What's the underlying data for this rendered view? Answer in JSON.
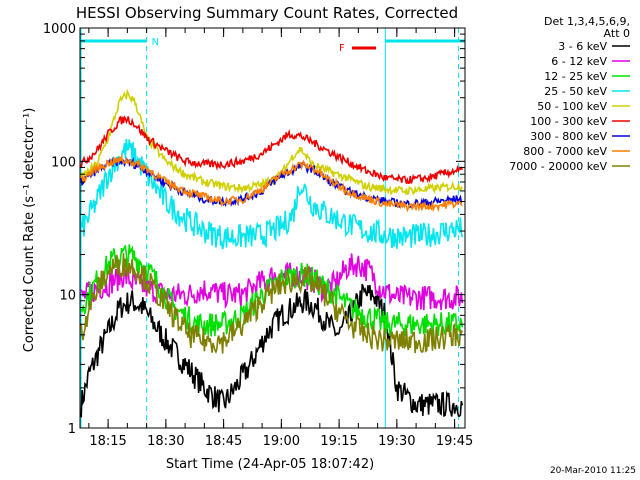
{
  "chart_data": {
    "type": "line",
    "title": "HESSI Observing Summary Count Rates, Corrected",
    "xlabel": "Start Time (24-Apr-05 18:07:42)",
    "ylabel": "Corrected Count Rate (s⁻¹ detector⁻¹)",
    "yscale": "log",
    "ylim": [
      1,
      1000
    ],
    "xlim_minutes_after_18_07_42": [
      0,
      100
    ],
    "x_ticks": [
      "18:15",
      "18:30",
      "18:45",
      "19:00",
      "19:15",
      "19:30",
      "19:45"
    ],
    "y_ticks": [
      "1",
      "10",
      "100",
      "1000"
    ],
    "legend_header": [
      "Det 1,3,4,5,6,9,",
      "Att 0"
    ],
    "legend_placement": "right",
    "flags": {
      "night_label": "N",
      "flare_label": "F",
      "night_color": "#00e5ee",
      "flare_color": "#ee0000"
    },
    "footer_date": "20-Mar-2010 11:25",
    "series": [
      {
        "name": "3 - 6 keV",
        "color": "#000000",
        "x": [
          "18:08",
          "18:10",
          "18:13",
          "18:16",
          "18:18",
          "18:21",
          "18:24",
          "18:27",
          "18:30",
          "18:35",
          "18:40",
          "18:45",
          "18:48",
          "18:52",
          "18:56",
          "19:00",
          "19:03",
          "19:06",
          "19:09",
          "19:12",
          "19:15",
          "19:18",
          "19:21",
          "19:24",
          "19:27",
          "19:30",
          "19:35",
          "19:40",
          "19:45"
        ],
        "y": [
          1.5,
          2.5,
          4,
          6,
          8,
          9,
          8,
          6,
          4.5,
          3,
          2,
          1.5,
          2,
          3,
          5,
          7,
          8,
          9,
          8,
          6,
          5,
          7,
          10,
          10,
          7,
          2,
          1.5,
          1.5,
          1.5
        ]
      },
      {
        "name": "6 - 12 keV",
        "color": "#e000e0",
        "x": [
          "18:08",
          "18:12",
          "18:15",
          "18:19",
          "18:22",
          "18:26",
          "18:30",
          "18:36",
          "18:40",
          "18:45",
          "18:50",
          "18:54",
          "18:58",
          "19:02",
          "19:05",
          "19:08",
          "19:11",
          "19:14",
          "19:17",
          "19:20",
          "19:23",
          "19:26",
          "19:30",
          "19:35",
          "19:40",
          "19:45"
        ],
        "y": [
          9.5,
          11,
          12,
          14,
          12,
          11,
          10,
          10,
          11,
          10,
          10,
          12,
          14,
          14,
          14,
          13,
          11,
          12,
          16,
          17,
          15,
          11,
          9.5,
          9.5,
          9.5,
          9.5
        ]
      },
      {
        "name": "12 - 25 keV",
        "color": "#00e000",
        "x": [
          "18:08",
          "18:10",
          "18:13",
          "18:16",
          "18:19",
          "18:22",
          "18:25",
          "18:28",
          "18:32",
          "18:38",
          "18:45",
          "18:50",
          "18:55",
          "19:00",
          "19:04",
          "19:07",
          "19:10",
          "19:14",
          "19:18",
          "19:22",
          "19:27",
          "19:32",
          "19:38",
          "19:45"
        ],
        "y": [
          8,
          10,
          14,
          18,
          20,
          19,
          16,
          12,
          8,
          6,
          6,
          7,
          10,
          13,
          14,
          14,
          12,
          10,
          8,
          7,
          6,
          6,
          6,
          6
        ]
      },
      {
        "name": "25 - 50 keV",
        "color": "#00e5ee",
        "x": [
          "18:08",
          "18:12",
          "18:15",
          "18:18",
          "18:20",
          "18:22",
          "18:25",
          "18:30",
          "18:35",
          "18:40",
          "18:45",
          "18:50",
          "18:55",
          "19:00",
          "19:03",
          "19:05",
          "19:08",
          "19:12",
          "19:17",
          "19:22",
          "19:27",
          "19:32",
          "19:38",
          "19:45"
        ],
        "y": [
          30,
          50,
          80,
          110,
          125,
          110,
          80,
          50,
          37,
          30,
          27,
          27,
          28,
          32,
          40,
          70,
          48,
          40,
          34,
          30,
          28,
          27,
          28,
          31
        ]
      },
      {
        "name": "50 - 100 keV",
        "color": "#d0d000",
        "x": [
          "18:08",
          "18:12",
          "18:15",
          "18:18",
          "18:20",
          "18:22",
          "18:25",
          "18:30",
          "18:35",
          "18:40",
          "18:45",
          "18:50",
          "18:55",
          "19:00",
          "19:03",
          "19:05",
          "19:08",
          "19:12",
          "19:17",
          "19:22",
          "19:27",
          "19:32",
          "19:38",
          "19:45"
        ],
        "y": [
          75,
          95,
          150,
          280,
          320,
          280,
          150,
          100,
          80,
          70,
          65,
          63,
          67,
          80,
          110,
          125,
          95,
          85,
          75,
          65,
          62,
          60,
          62,
          65
        ]
      },
      {
        "name": "100 - 300 keV",
        "color": "#ee0000",
        "x": [
          "18:08",
          "18:12",
          "18:15",
          "18:18",
          "18:20",
          "18:22",
          "18:25",
          "18:30",
          "18:35",
          "18:40",
          "18:45",
          "18:50",
          "18:55",
          "19:00",
          "19:02",
          "19:05",
          "19:08",
          "19:12",
          "19:17",
          "19:22",
          "19:27",
          "19:32",
          "19:38",
          "19:45"
        ],
        "y": [
          95,
          120,
          160,
          200,
          210,
          190,
          150,
          120,
          100,
          95,
          95,
          100,
          115,
          145,
          160,
          155,
          140,
          120,
          100,
          85,
          75,
          72,
          75,
          85
        ]
      },
      {
        "name": "300 - 800 keV",
        "color": "#0000e0",
        "x": [
          "18:08",
          "18:12",
          "18:15",
          "18:18",
          "18:21",
          "18:25",
          "18:30",
          "18:35",
          "18:40",
          "18:45",
          "18:50",
          "18:55",
          "19:00",
          "19:05",
          "19:08",
          "19:12",
          "19:17",
          "19:22",
          "19:27",
          "19:32",
          "19:38",
          "19:45"
        ],
        "y": [
          70,
          85,
          95,
          100,
          98,
          85,
          68,
          58,
          52,
          50,
          52,
          60,
          78,
          92,
          88,
          72,
          60,
          54,
          50,
          48,
          49,
          52
        ]
      },
      {
        "name": "800 - 7000 keV",
        "color": "#ff8000",
        "x": [
          "18:08",
          "18:12",
          "18:15",
          "18:18",
          "18:21",
          "18:25",
          "18:30",
          "18:35",
          "18:40",
          "18:45",
          "18:50",
          "18:55",
          "19:00",
          "19:05",
          "19:08",
          "19:12",
          "19:17",
          "19:22",
          "19:27",
          "19:32",
          "19:38",
          "19:45"
        ],
        "y": [
          72,
          88,
          97,
          102,
          100,
          88,
          70,
          60,
          54,
          50,
          52,
          62,
          80,
          95,
          90,
          74,
          60,
          53,
          48,
          46,
          46,
          48
        ]
      },
      {
        "name": "7000 - 20000 keV",
        "color": "#808000",
        "x": [
          "18:08",
          "18:10",
          "18:13",
          "18:16",
          "18:19",
          "18:22",
          "18:25",
          "18:28",
          "18:32",
          "18:36",
          "18:40",
          "18:45",
          "18:50",
          "18:55",
          "19:00",
          "19:04",
          "19:07",
          "19:10",
          "19:14",
          "19:18",
          "19:22",
          "19:27",
          "19:32",
          "19:38",
          "19:45"
        ],
        "y": [
          5,
          8,
          12,
          16,
          17,
          16,
          13,
          10,
          7,
          5,
          4.5,
          4.5,
          6,
          9,
          12,
          13,
          13,
          11,
          8,
          6,
          5,
          4.5,
          4.5,
          4.5,
          5
        ]
      }
    ]
  }
}
